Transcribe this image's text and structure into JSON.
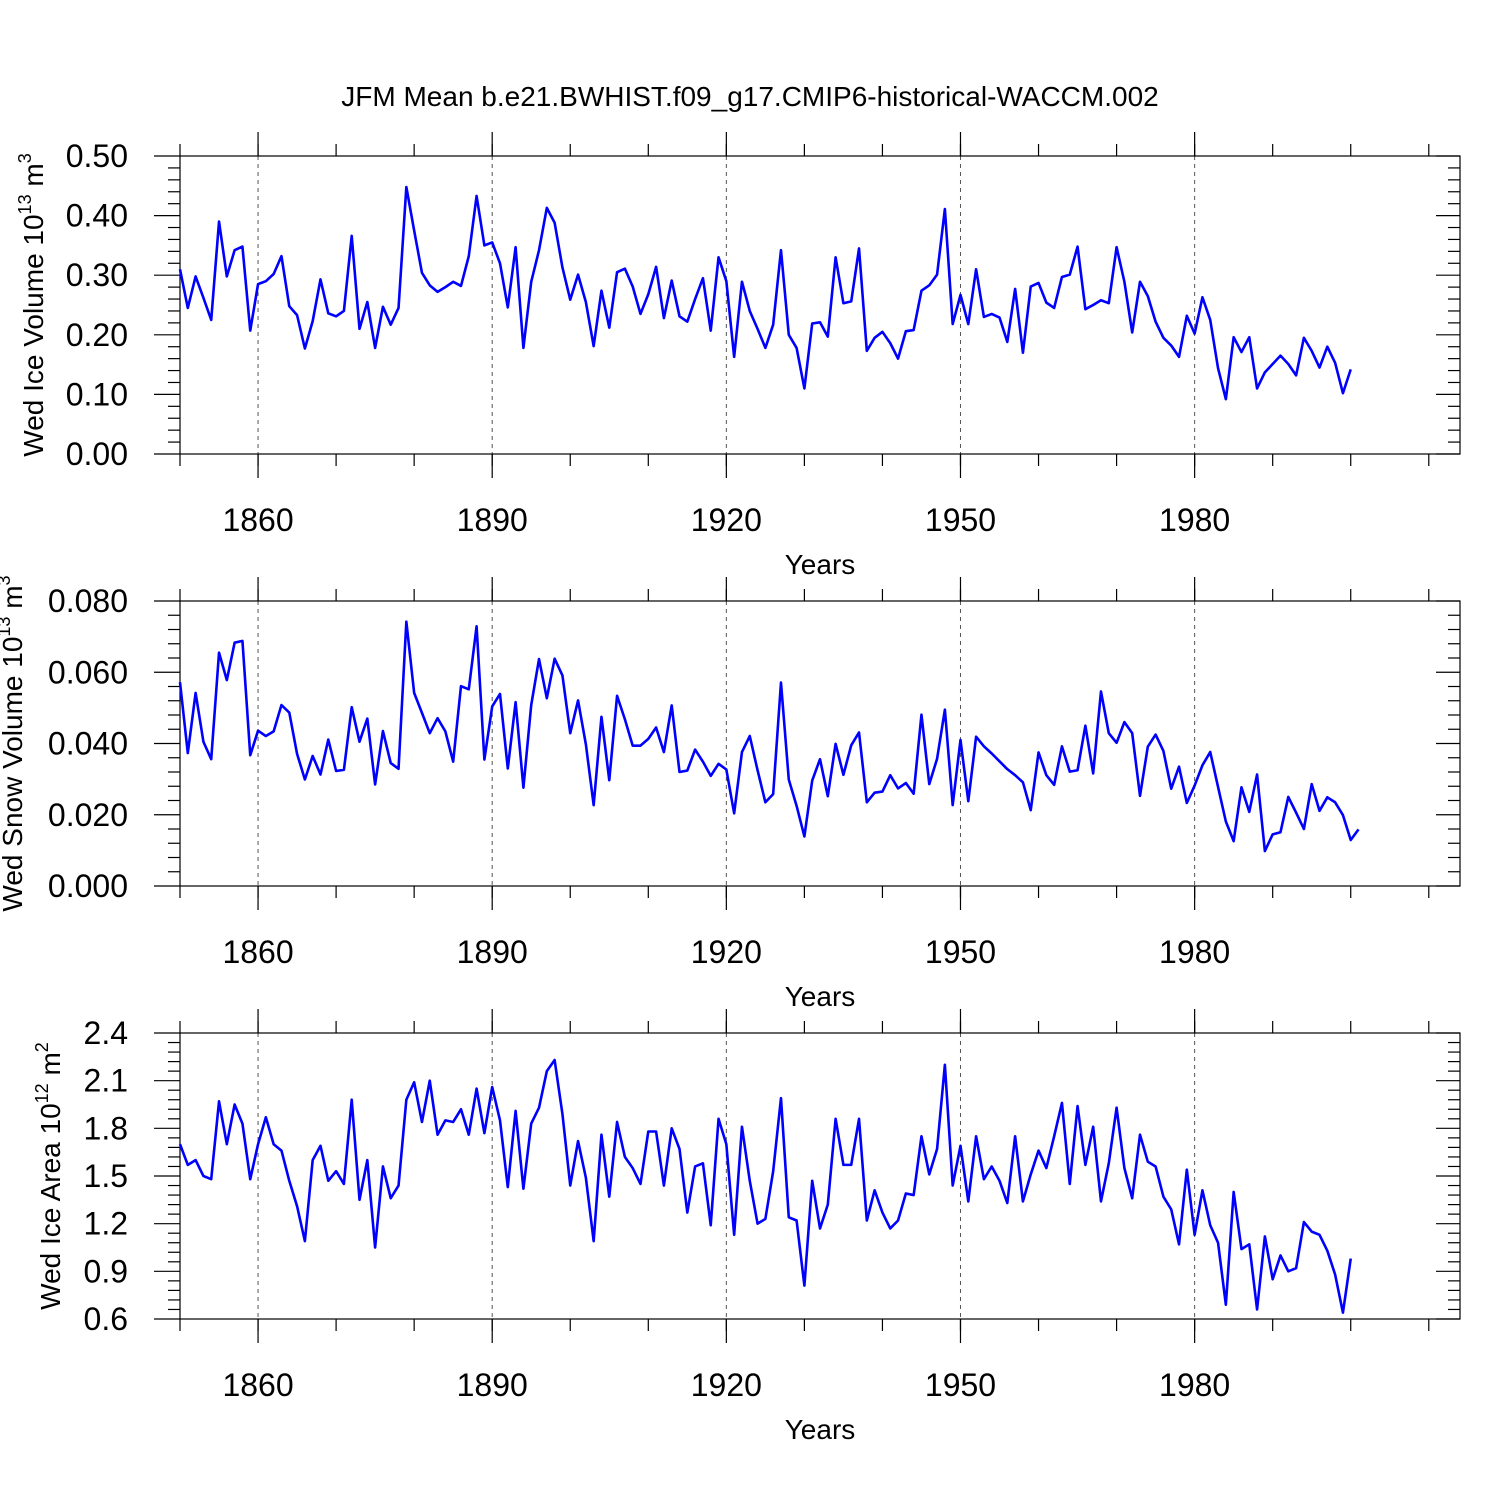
{
  "title": "JFM Mean b.e21.BWHIST.f09_g17.CMIP6-historical-WACCM.002",
  "chart_data": [
    {
      "type": "line",
      "ylabel": "Wed Ice Volume 10",
      "ylabel_exp": "13",
      "ylabel_unit": " m",
      "ylabel_unit_exp": "3",
      "xlabel": "Years",
      "xlim": [
        1850,
        2014
      ],
      "ylim": [
        0,
        0.5
      ],
      "yticks": [
        "0.00",
        "0.10",
        "0.20",
        "0.30",
        "0.40",
        "0.50"
      ],
      "xticks": [
        "1860",
        "1890",
        "1920",
        "1950",
        "1980"
      ],
      "grid": "vertical dashed at x ticks",
      "series": [
        {
          "color": "#0000ff",
          "x_start": 1850,
          "values": [
            0.31,
            0.245,
            0.298,
            0.262,
            0.225,
            0.39,
            0.298,
            0.342,
            0.348,
            0.207,
            0.285,
            0.29,
            0.302,
            0.332,
            0.248,
            0.233,
            0.177,
            0.223,
            0.293,
            0.236,
            0.231,
            0.24,
            0.366,
            0.21,
            0.255,
            0.178,
            0.247,
            0.217,
            0.245,
            0.448,
            0.375,
            0.304,
            0.283,
            0.272,
            0.28,
            0.289,
            0.282,
            0.332,
            0.433,
            0.35,
            0.355,
            0.32,
            0.246,
            0.347,
            0.178,
            0.289,
            0.342,
            0.413,
            0.388,
            0.313,
            0.259,
            0.301,
            0.255,
            0.181,
            0.274,
            0.212,
            0.305,
            0.311,
            0.281,
            0.235,
            0.268,
            0.314,
            0.228,
            0.291,
            0.231,
            0.222,
            0.26,
            0.295,
            0.207,
            0.33,
            0.29,
            0.163,
            0.289,
            0.24,
            0.21,
            0.178,
            0.217,
            0.342,
            0.2,
            0.178,
            0.11,
            0.219,
            0.221,
            0.197,
            0.33,
            0.253,
            0.256,
            0.345,
            0.173,
            0.195,
            0.205,
            0.186,
            0.16,
            0.206,
            0.208,
            0.274,
            0.283,
            0.301,
            0.411,
            0.218,
            0.267,
            0.218,
            0.31,
            0.23,
            0.235,
            0.229,
            0.188,
            0.277,
            0.17,
            0.281,
            0.287,
            0.254,
            0.245,
            0.297,
            0.301,
            0.348,
            0.243,
            0.25,
            0.258,
            0.253,
            0.347,
            0.289,
            0.204,
            0.289,
            0.265,
            0.222,
            0.195,
            0.182,
            0.163,
            0.232,
            0.202,
            0.263,
            0.225,
            0.144,
            0.092,
            0.196,
            0.171,
            0.196,
            0.11,
            0.137,
            0.151,
            0.165,
            0.151,
            0.132,
            0.195,
            0.173,
            0.145,
            0.18,
            0.153,
            0.102,
            0.142
          ]
        }
      ]
    },
    {
      "type": "line",
      "ylabel": "Wed Snow Volume 10",
      "ylabel_exp": "13",
      "ylabel_unit": " m",
      "ylabel_unit_exp": "3",
      "xlabel": "Years",
      "xlim": [
        1850,
        2014
      ],
      "ylim": [
        0,
        0.08
      ],
      "yticks": [
        "0.000",
        "0.020",
        "0.040",
        "0.060",
        "0.080"
      ],
      "xticks": [
        "1860",
        "1890",
        "1920",
        "1950",
        "1980"
      ],
      "grid": "vertical dashed at x ticks",
      "series": [
        {
          "color": "#0000ff",
          "x_start": 1850,
          "values": [
            0.0572,
            0.0373,
            0.0542,
            0.0405,
            0.0356,
            0.0655,
            0.0578,
            0.0683,
            0.0688,
            0.0367,
            0.0436,
            0.0421,
            0.0434,
            0.0508,
            0.0487,
            0.0371,
            0.0299,
            0.0365,
            0.0313,
            0.0411,
            0.0323,
            0.0326,
            0.0502,
            0.0405,
            0.047,
            0.0285,
            0.0435,
            0.0345,
            0.0329,
            0.0742,
            0.0542,
            0.0486,
            0.0429,
            0.0471,
            0.0434,
            0.0349,
            0.0561,
            0.0552,
            0.0729,
            0.0355,
            0.0504,
            0.0539,
            0.033,
            0.0516,
            0.0276,
            0.0508,
            0.0637,
            0.0527,
            0.0638,
            0.0591,
            0.0429,
            0.0521,
            0.0398,
            0.0227,
            0.0475,
            0.0297,
            0.0534,
            0.0468,
            0.0394,
            0.0394,
            0.0413,
            0.0445,
            0.0376,
            0.0507,
            0.032,
            0.0324,
            0.0383,
            0.0349,
            0.0309,
            0.0343,
            0.0327,
            0.0204,
            0.0376,
            0.0421,
            0.0325,
            0.0235,
            0.0258,
            0.0571,
            0.0299,
            0.0225,
            0.0139,
            0.0296,
            0.0356,
            0.0252,
            0.0399,
            0.0312,
            0.0395,
            0.0431,
            0.0235,
            0.0262,
            0.0265,
            0.0311,
            0.0274,
            0.0289,
            0.0259,
            0.0481,
            0.0286,
            0.0357,
            0.0495,
            0.0227,
            0.041,
            0.0238,
            0.0419,
            0.0392,
            0.0372,
            0.035,
            0.0328,
            0.0311,
            0.0291,
            0.0213,
            0.0375,
            0.0311,
            0.0284,
            0.0392,
            0.0321,
            0.0325,
            0.045,
            0.0316,
            0.0546,
            0.0429,
            0.0402,
            0.046,
            0.0429,
            0.0253,
            0.0391,
            0.0425,
            0.0379,
            0.0273,
            0.0335,
            0.0233,
            0.0282,
            0.0339,
            0.0376,
            0.0278,
            0.0181,
            0.0126,
            0.0277,
            0.0208,
            0.0313,
            0.0098,
            0.0145,
            0.0151,
            0.025,
            0.0206,
            0.016,
            0.0286,
            0.0211,
            0.0249,
            0.0235,
            0.0199,
            0.0129,
            0.0159
          ]
        }
      ]
    },
    {
      "type": "line",
      "ylabel": "Wed Ice Area 10",
      "ylabel_exp": "12",
      "ylabel_unit": " m",
      "ylabel_unit_exp": "2",
      "xlabel": "Years",
      "xlim": [
        1850,
        2014
      ],
      "ylim": [
        0.6,
        2.4
      ],
      "yticks": [
        "0.6",
        "0.9",
        "1.2",
        "1.5",
        "1.8",
        "2.1",
        "2.4"
      ],
      "xticks": [
        "1860",
        "1890",
        "1920",
        "1950",
        "1980"
      ],
      "grid": "vertical dashed at x ticks",
      "series": [
        {
          "color": "#0000ff",
          "x_start": 1850,
          "values": [
            1.7,
            1.57,
            1.6,
            1.5,
            1.48,
            1.97,
            1.7,
            1.95,
            1.83,
            1.48,
            1.7,
            1.87,
            1.7,
            1.66,
            1.47,
            1.31,
            1.09,
            1.6,
            1.69,
            1.47,
            1.53,
            1.45,
            1.98,
            1.35,
            1.6,
            1.05,
            1.56,
            1.36,
            1.44,
            1.98,
            2.09,
            1.84,
            2.1,
            1.76,
            1.85,
            1.84,
            1.92,
            1.76,
            2.05,
            1.77,
            2.06,
            1.85,
            1.43,
            1.91,
            1.42,
            1.83,
            1.93,
            2.16,
            2.23,
            1.89,
            1.44,
            1.72,
            1.49,
            1.09,
            1.76,
            1.37,
            1.84,
            1.62,
            1.55,
            1.45,
            1.78,
            1.78,
            1.44,
            1.8,
            1.67,
            1.27,
            1.56,
            1.58,
            1.19,
            1.86,
            1.7,
            1.13,
            1.81,
            1.47,
            1.2,
            1.23,
            1.53,
            1.99,
            1.24,
            1.22,
            0.81,
            1.47,
            1.17,
            1.32,
            1.86,
            1.57,
            1.57,
            1.86,
            1.22,
            1.41,
            1.27,
            1.17,
            1.22,
            1.39,
            1.38,
            1.75,
            1.51,
            1.67,
            2.2,
            1.44,
            1.69,
            1.34,
            1.75,
            1.48,
            1.56,
            1.47,
            1.33,
            1.75,
            1.34,
            1.51,
            1.66,
            1.55,
            1.75,
            1.96,
            1.45,
            1.94,
            1.57,
            1.81,
            1.34,
            1.58,
            1.93,
            1.55,
            1.36,
            1.76,
            1.59,
            1.56,
            1.37,
            1.29,
            1.07,
            1.54,
            1.13,
            1.41,
            1.19,
            1.08,
            0.69,
            1.4,
            1.04,
            1.07,
            0.66,
            1.12,
            0.85,
            1.0,
            0.9,
            0.92,
            1.21,
            1.15,
            1.13,
            1.03,
            0.88,
            0.64,
            0.98
          ]
        }
      ]
    }
  ]
}
